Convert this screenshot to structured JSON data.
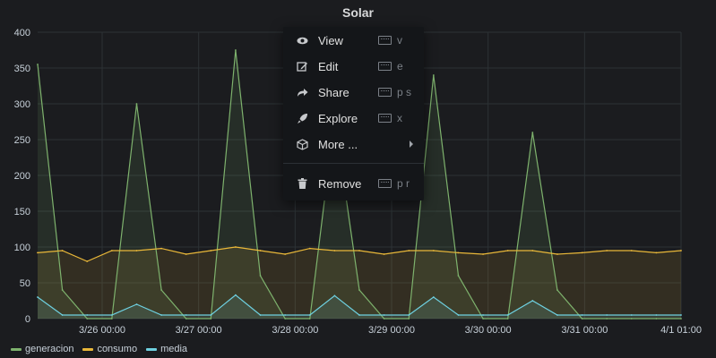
{
  "panel": {
    "title": "Solar"
  },
  "chart_data": {
    "type": "line",
    "x": [
      "3/25 12:00",
      "3/25 18:00",
      "3/26 00:00",
      "3/26 06:00",
      "3/26 12:00",
      "3/26 18:00",
      "3/27 00:00",
      "3/27 06:00",
      "3/27 12:00",
      "3/27 18:00",
      "3/28 00:00",
      "3/28 06:00",
      "3/28 12:00",
      "3/28 18:00",
      "3/29 00:00",
      "3/29 06:00",
      "3/29 12:00",
      "3/29 18:00",
      "3/30 00:00",
      "3/30 06:00",
      "3/30 12:00",
      "3/30 18:00",
      "3/31 00:00",
      "3/31 06:00",
      "3/31 12:00",
      "3/31 18:00",
      "4/1 00:00"
    ],
    "x_tick_labels": [
      "3/26 00:00",
      "3/27 00:00",
      "3/28 00:00",
      "3/29 00:00",
      "3/30 00:00",
      "3/31 00:00",
      "4/1 01:00"
    ],
    "y_tick_labels": [
      "0",
      "50",
      "100",
      "150",
      "200",
      "250",
      "300",
      "350",
      "400"
    ],
    "ylim": [
      0,
      400
    ],
    "grid": true,
    "legend_position": "bottom-left",
    "series": [
      {
        "name": "generacion",
        "color": "#7eb26d",
        "values": [
          355,
          40,
          0,
          0,
          300,
          40,
          0,
          0,
          375,
          60,
          0,
          0,
          280,
          40,
          0,
          0,
          340,
          60,
          0,
          0,
          260,
          40,
          0,
          0,
          0,
          0,
          0
        ]
      },
      {
        "name": "consumo",
        "color": "#eab839",
        "values": [
          92,
          95,
          80,
          95,
          95,
          98,
          90,
          95,
          100,
          95,
          90,
          98,
          95,
          95,
          90,
          95,
          95,
          92,
          90,
          95,
          95,
          90,
          92,
          95,
          95,
          92,
          95
        ]
      },
      {
        "name": "media",
        "color": "#6ed0e0",
        "values": [
          30,
          5,
          5,
          5,
          20,
          5,
          5,
          5,
          33,
          5,
          5,
          5,
          32,
          5,
          5,
          5,
          30,
          5,
          5,
          5,
          25,
          5,
          5,
          5,
          5,
          5,
          5
        ]
      }
    ]
  },
  "menu": {
    "items": [
      {
        "label": "View",
        "icon": "eye-icon",
        "shortcut": "v"
      },
      {
        "label": "Edit",
        "icon": "edit-icon",
        "shortcut": "e"
      },
      {
        "label": "Share",
        "icon": "share-icon",
        "shortcut": "p s"
      },
      {
        "label": "Explore",
        "icon": "rocket-icon",
        "shortcut": "x"
      },
      {
        "label": "More ...",
        "icon": "cube-icon"
      },
      {
        "label": "Remove",
        "icon": "trash-icon",
        "shortcut": "p r"
      }
    ]
  }
}
